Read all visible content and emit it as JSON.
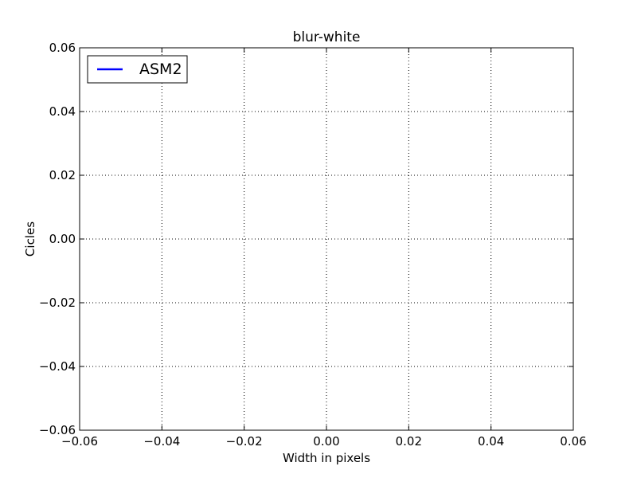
{
  "chart_data": {
    "type": "line",
    "title": "blur-white",
    "xlabel": "Width in pixels",
    "ylabel": "Cicles",
    "xlim": [
      -0.06,
      0.06
    ],
    "ylim": [
      -0.06,
      0.06
    ],
    "xticks": [
      -0.06,
      -0.04,
      -0.02,
      0.0,
      0.02,
      0.04,
      0.06
    ],
    "xtick_labels": [
      "−0.06",
      "−0.04",
      "−0.02",
      "0.00",
      "0.02",
      "0.04",
      "0.06"
    ],
    "yticks": [
      -0.06,
      -0.04,
      -0.02,
      0.0,
      0.02,
      0.04,
      0.06
    ],
    "ytick_labels": [
      "−0.06",
      "−0.04",
      "−0.02",
      "0.00",
      "0.02",
      "0.04",
      "0.06"
    ],
    "grid": true,
    "legend_position": "top-left",
    "series": [
      {
        "name": "ASM2",
        "color": "#0000ff",
        "x": [],
        "y": []
      }
    ]
  }
}
